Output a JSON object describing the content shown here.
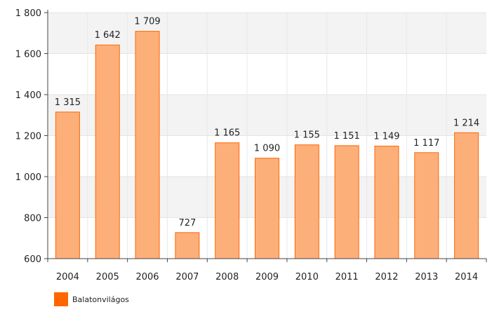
{
  "chart_data": {
    "type": "bar",
    "categories": [
      "2004",
      "2005",
      "2006",
      "2007",
      "2008",
      "2009",
      "2010",
      "2011",
      "2012",
      "2013",
      "2014"
    ],
    "series": [
      {
        "name": "Balatonvilágos",
        "values": [
          1315,
          1642,
          1709,
          727,
          1165,
          1090,
          1155,
          1151,
          1149,
          1117,
          1214
        ]
      }
    ],
    "value_labels": [
      "1 315",
      "1 642",
      "1 709",
      "727",
      "1 165",
      "1 090",
      "1 155",
      "1 151",
      "1 149",
      "1 117",
      "1 214"
    ],
    "y_ticks": [
      600,
      800,
      1000,
      1200,
      1400,
      1600,
      1800
    ],
    "y_tick_labels": [
      "600",
      "800",
      "1 000",
      "1 200",
      "1 400",
      "1 600",
      "1 800"
    ],
    "ylim": [
      600,
      1800
    ],
    "grid": true,
    "legend": "bottom-left",
    "colors": {
      "bar_fill": "#fdaf7a",
      "bar_stroke": "#ff6600",
      "band": "#f3f3f3",
      "axis": "#444444"
    }
  }
}
